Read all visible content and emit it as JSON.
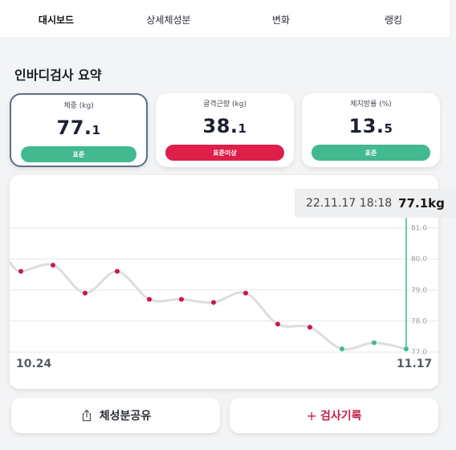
{
  "tabs": [
    {
      "label": "대시보드",
      "active": true
    },
    {
      "label": "상세체성분",
      "active": false
    },
    {
      "label": "변화",
      "active": false
    },
    {
      "label": "랭킹",
      "active": false
    }
  ],
  "section_title": "인바디검사 요약",
  "cards": [
    {
      "label": "체중 (kg)",
      "int": "77.",
      "dec": "1",
      "status": "표준",
      "status_color": "#42b98f",
      "selected": true
    },
    {
      "label": "골격근량 (kg)",
      "int": "38.",
      "dec": "1",
      "status": "표준이상",
      "status_color": "#dd1f4a",
      "selected": false
    },
    {
      "label": "체지방률 (%)",
      "int": "13.",
      "dec": "5",
      "status": "표준",
      "status_color": "#42b98f",
      "selected": false
    }
  ],
  "tooltip": {
    "date": "22.11.17 18:18",
    "value": "77.1kg"
  },
  "x_start_label": "10.24",
  "x_end_label": "11.17",
  "actions": {
    "share_label": "체성분공유",
    "record_plus": "+",
    "record_label": "검사기록"
  },
  "chart_data": {
    "type": "line",
    "title": "",
    "xlabel": "",
    "ylabel": "",
    "ylim": [
      76.9,
      81.3
    ],
    "y_ticks": [
      "81.0",
      "80.0",
      "79.0",
      "78.0",
      "77.0"
    ],
    "grid": true,
    "series": [
      {
        "values": [
          79.6,
          79.8,
          78.9,
          79.6,
          78.7,
          78.7,
          78.6,
          78.9,
          77.9,
          77.8,
          77.1,
          77.3,
          77.1
        ],
        "point_colors": [
          "#c9184a",
          "#c9184a",
          "#c9184a",
          "#c9184a",
          "#c9184a",
          "#c9184a",
          "#c9184a",
          "#c9184a",
          "#c9184a",
          "#c9184a",
          "#42b98f",
          "#42b98f",
          "#42b98f"
        ]
      }
    ],
    "highlight_index": 12,
    "highlight_color": "#42b98f"
  }
}
